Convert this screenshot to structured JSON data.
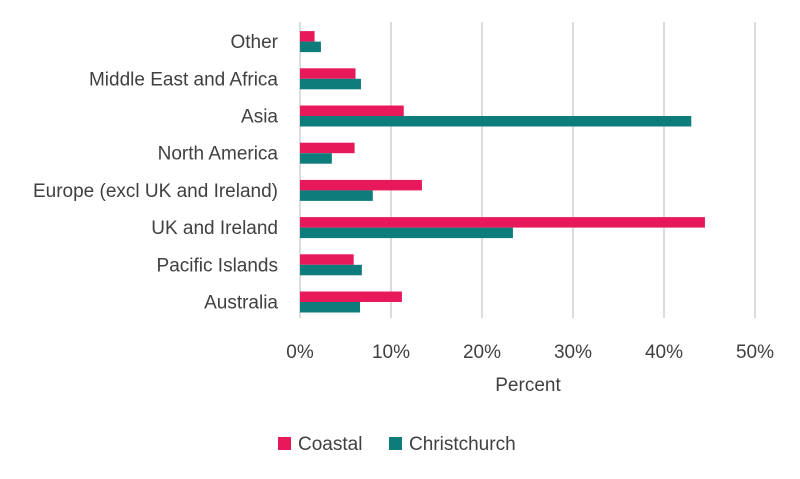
{
  "chart_data": {
    "type": "bar",
    "orientation": "horizontal",
    "categories": [
      "Australia",
      "Pacific Islands",
      "UK and Ireland",
      "Europe (excl UK and Ireland)",
      "North America",
      "Asia",
      "Middle East and Africa",
      "Other"
    ],
    "series": [
      {
        "name": "Coastal",
        "color": "#e8195a",
        "values": [
          11.2,
          5.9,
          44.5,
          13.4,
          6.0,
          11.4,
          6.1,
          1.6
        ]
      },
      {
        "name": "Christchurch",
        "color": "#0e7c7b",
        "values": [
          6.6,
          6.8,
          23.4,
          8.0,
          3.5,
          43.0,
          6.7,
          2.3
        ]
      }
    ],
    "xlabel": "Percent",
    "ylabel": "",
    "xlim": [
      0,
      50
    ],
    "x_ticks": [
      0,
      10,
      20,
      30,
      40,
      50
    ],
    "tick_suffix": "%",
    "grid": "vertical",
    "legend_position": "bottom"
  }
}
